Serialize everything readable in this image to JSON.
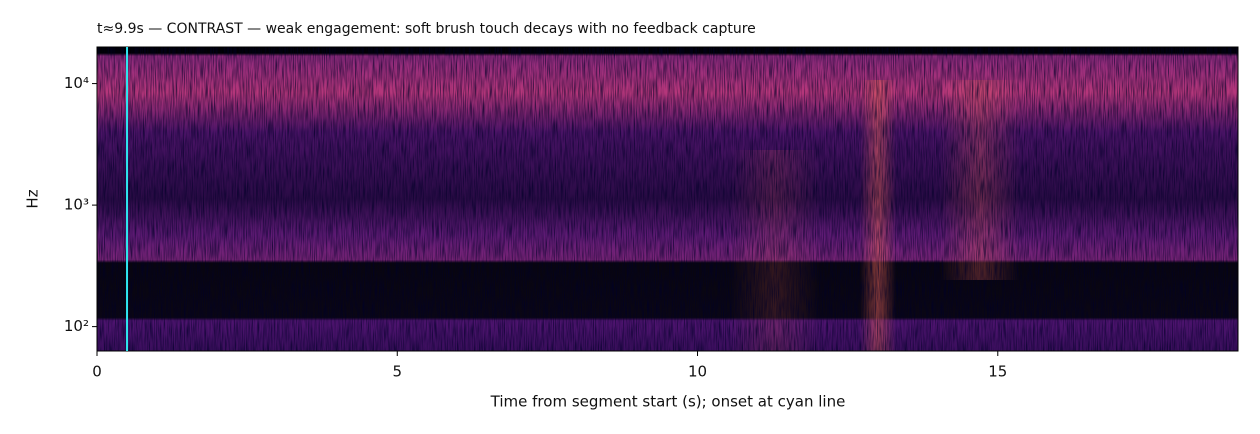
{
  "chart_data": {
    "type": "spectrogram",
    "title": "t≈9.9s  —  CONTRAST — weak engagement: soft brush touch decays with no feedback capture",
    "xlabel": "Time from segment start (s); onset at cyan line",
    "ylabel": "Hz",
    "xlim": [
      0,
      19
    ],
    "xticks": [
      0,
      5,
      10,
      15
    ],
    "ylim": [
      63,
      20000
    ],
    "yscale": "log",
    "yticks": [
      {
        "value": 100,
        "label": "10²"
      },
      {
        "value": 1000,
        "label": "10³"
      },
      {
        "value": 10000,
        "label": "10⁴"
      }
    ],
    "vlines": [
      {
        "x": 0.5,
        "color": "#2ee6f0"
      }
    ]
  }
}
